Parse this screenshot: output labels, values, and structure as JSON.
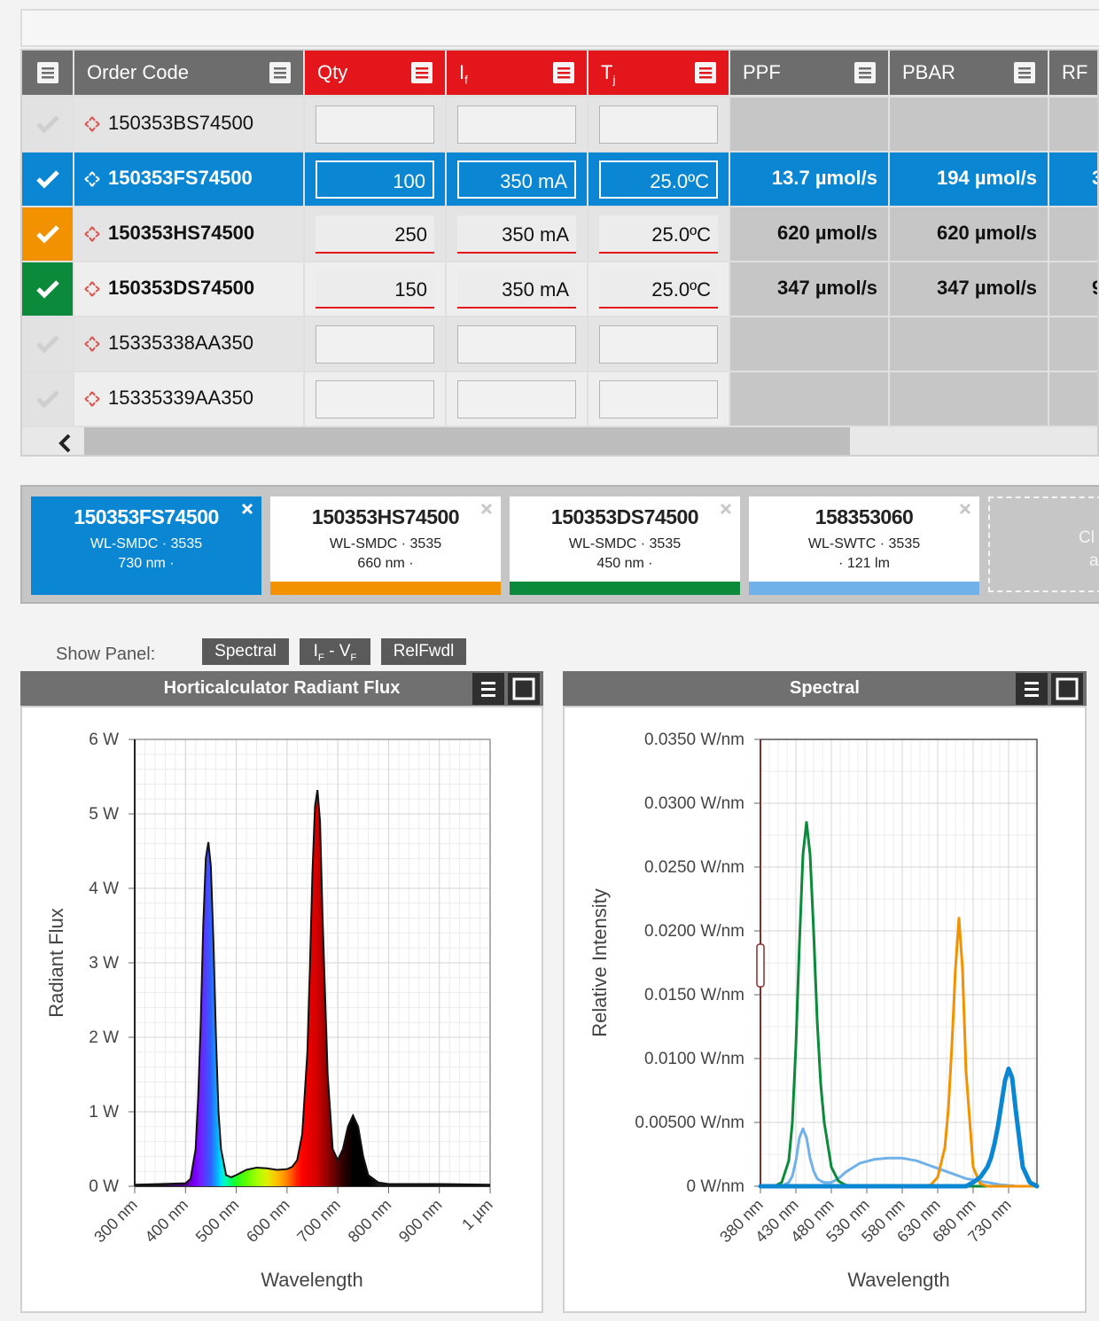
{
  "table": {
    "headers": [
      {
        "parts": [
          {
            "text": "Order Code"
          }
        ],
        "color": "#6d6d6d"
      },
      {
        "parts": [
          {
            "text": "Qty"
          }
        ],
        "color": "#e3161b"
      },
      {
        "parts": [
          {
            "text": "I"
          },
          {
            "text": "f",
            "sub": true
          }
        ],
        "color": "#e3161b"
      },
      {
        "parts": [
          {
            "text": "T"
          },
          {
            "text": "j",
            "sub": true
          }
        ],
        "color": "#e3161b"
      },
      {
        "parts": [
          {
            "text": "PPF"
          }
        ],
        "color": "#6d6d6d"
      },
      {
        "parts": [
          {
            "text": "PBAR"
          }
        ],
        "color": "#6d6d6d"
      },
      {
        "parts": [
          {
            "text": "RF"
          }
        ],
        "color": "#6d6d6d"
      }
    ],
    "rows": [
      {
        "code": "150353BS74500",
        "check_color": "#e2e2e2"
      },
      {
        "code": "150353FS74500",
        "qty": 100,
        "current": "350 mA",
        "temp": "25.0ºC",
        "ppf": "13.7 µmol/s",
        "pbar": "194 µmol/s",
        "rf": "3",
        "check_color": "#0a86d3",
        "row_color": "#0a86d3"
      },
      {
        "code": "150353HS74500",
        "qty": 250,
        "current": "350 mA",
        "temp": "25.0ºC",
        "ppf": "620 µmol/s",
        "pbar": "620 µmol/s",
        "check_color": "#f39200"
      },
      {
        "code": "150353DS74500",
        "qty": 150,
        "current": "350 mA",
        "temp": "25.0ºC",
        "ppf": "347 µmol/s",
        "pbar": "347 µmol/s",
        "rf": "9",
        "check_color": "#0a8a3a"
      },
      {
        "code": "15335338AA350",
        "check_color": "#e2e2e2"
      },
      {
        "code": "15335339AA350",
        "check_color": "#e2e2e2"
      }
    ]
  },
  "selection_cards": [
    {
      "title": "150353FS74500",
      "line1": "WL-SMDC · 3535",
      "line2": "730 nm ·",
      "bar_color": "#0a86d3",
      "background": "#0a86d3"
    },
    {
      "title": "150353HS74500",
      "line1": "WL-SMDC · 3535",
      "line2": "660 nm ·",
      "bar_color": "#f39200"
    },
    {
      "title": "150353DS74500",
      "line1": "WL-SMDC · 3535",
      "line2": "450 nm ·",
      "bar_color": "#0a8a3a"
    },
    {
      "title": "158353060",
      "line1": "WL-SWTC · 3535",
      "line2": "· 121 lm",
      "bar_color": "#6fb1e8"
    }
  ],
  "clear_card": {
    "lines": [
      "Cl",
      "a"
    ]
  },
  "show_panel": {
    "label": "Show Panel:",
    "buttons": [
      {
        "parts": [
          {
            "text": "Spectral"
          }
        ]
      },
      {
        "parts": [
          {
            "text": "I"
          },
          {
            "text": "F",
            "sub": true
          },
          {
            "text": " - V"
          },
          {
            "text": "F",
            "sub": true
          }
        ]
      },
      {
        "parts": [
          {
            "text": "RelFwdl"
          }
        ]
      }
    ]
  },
  "chart_data": [
    {
      "type": "area",
      "title": "Horticalculator Radiant Flux",
      "x_label": "Wavelength",
      "y_label": "Radiant Flux",
      "x": [
        300,
        350,
        400,
        410,
        420,
        425,
        430,
        435,
        440,
        445,
        450,
        455,
        460,
        465,
        470,
        480,
        490,
        500,
        520,
        540,
        560,
        580,
        600,
        610,
        620,
        630,
        640,
        645,
        650,
        655,
        660,
        665,
        670,
        680,
        690,
        700,
        710,
        720,
        730,
        740,
        750,
        760,
        780,
        800,
        900,
        1000
      ],
      "values": [
        0.02,
        0.03,
        0.04,
        0.1,
        0.5,
        1.2,
        2.2,
        3.5,
        4.4,
        4.62,
        4.3,
        3.3,
        2.0,
        1.0,
        0.5,
        0.15,
        0.12,
        0.15,
        0.22,
        0.25,
        0.24,
        0.22,
        0.23,
        0.26,
        0.35,
        0.7,
        1.8,
        2.9,
        4.2,
        5.1,
        5.32,
        4.9,
        3.6,
        1.5,
        0.5,
        0.35,
        0.5,
        0.8,
        0.95,
        0.8,
        0.4,
        0.15,
        0.05,
        0.03,
        0.03,
        0.02
      ],
      "colors": [
        "#1a1a1a",
        "#1a1a1a",
        "#4b0082",
        "#6a00c8",
        "#7a00ff",
        "#7a10ff",
        "#7020ff",
        "#6030ff",
        "#5040ff",
        "#4050ff",
        "#3060ff",
        "#2080ff",
        "#10a0ff",
        "#00c0ff",
        "#00e0f0",
        "#00ffb0",
        "#00ff60",
        "#20ff20",
        "#60ff00",
        "#a0ff00",
        "#e0f000",
        "#ffc000",
        "#ff8000",
        "#ff5000",
        "#ff2000",
        "#ff0000",
        "#f00000",
        "#e80000",
        "#e00000",
        "#d80000",
        "#d00000",
        "#c00000",
        "#b00000",
        "#900000",
        "#700000",
        "#500000",
        "#300000",
        "#180000",
        "#000000",
        "#000000",
        "#000000",
        "#000000",
        "#1a1a1a",
        "#1a1a1a",
        "#1a1a1a",
        "#1a1a1a"
      ],
      "line_color": "#111111",
      "xlim": [
        300,
        1000
      ],
      "xticks": [
        {
          "value": 300,
          "label": "300 nm"
        },
        {
          "value": 400,
          "label": "400 nm"
        },
        {
          "value": 500,
          "label": "500 nm"
        },
        {
          "value": 600,
          "label": "600 nm"
        },
        {
          "value": 700,
          "label": "700 nm"
        },
        {
          "value": 800,
          "label": "800 nm"
        },
        {
          "value": 900,
          "label": "900 nm"
        },
        {
          "value": 1000,
          "label": "1 µm"
        }
      ],
      "ylim": [
        0,
        6
      ],
      "yticks": [
        {
          "value": 0,
          "label": "0 W"
        },
        {
          "value": 1,
          "label": "1 W"
        },
        {
          "value": 2,
          "label": "2 W"
        },
        {
          "value": 3,
          "label": "3 W"
        },
        {
          "value": 4,
          "label": "4 W"
        },
        {
          "value": 5,
          "label": "5 W"
        },
        {
          "value": 6,
          "label": "6 W"
        }
      ],
      "grid": true
    },
    {
      "type": "line",
      "title": "Spectral",
      "x_label": "Wavelength",
      "y_label": "Relative Intensity",
      "x": [
        380,
        390,
        400,
        410,
        420,
        425,
        430,
        435,
        440,
        445,
        450,
        455,
        460,
        465,
        470,
        480,
        490,
        500,
        520,
        540,
        560,
        580,
        600,
        620,
        630,
        640,
        645,
        650,
        655,
        660,
        665,
        670,
        680,
        690,
        700,
        705,
        710,
        715,
        720,
        725,
        730,
        735,
        740,
        750,
        760,
        770
      ],
      "series": [
        {
          "color": "#6fb1e8",
          "line_width": 3,
          "values": [
            0,
            0,
            0,
            0,
            0.0003,
            0.0008,
            0.002,
            0.0038,
            0.0045,
            0.0038,
            0.0022,
            0.0012,
            0.0006,
            0.0004,
            0.0003,
            0.0003,
            0.0006,
            0.0011,
            0.0018,
            0.0021,
            0.0022,
            0.0022,
            0.002,
            0.0016,
            0.0014,
            0.0012,
            0.0011,
            0.001,
            0.0009,
            0.0008,
            0.0007,
            0.0006,
            0.0005,
            0.0004,
            0.0003,
            0.00025,
            0.0002,
            0.00015,
            0.0001,
            0.0001,
            5e-05,
            5e-05,
            0,
            0,
            0,
            0
          ]
        },
        {
          "color": "#0a8a3a",
          "line_width": 3,
          "values": [
            0,
            0,
            0,
            0.0003,
            0.002,
            0.005,
            0.011,
            0.019,
            0.026,
            0.0285,
            0.026,
            0.02,
            0.013,
            0.008,
            0.005,
            0.0015,
            0.0004,
            0.0001,
            0,
            0,
            0,
            0,
            0,
            0,
            0,
            0,
            0,
            0,
            0,
            0,
            0,
            0,
            0,
            0,
            0,
            0,
            0,
            0,
            0,
            0,
            0,
            0,
            0,
            0,
            0,
            0
          ]
        },
        {
          "color": "#f39200",
          "line_width": 3,
          "values": [
            0,
            0,
            0,
            0,
            0,
            0,
            0,
            0,
            0,
            0,
            0,
            0,
            0,
            0,
            0,
            0,
            0,
            0,
            0,
            0,
            0,
            0,
            0,
            0.0001,
            0.0007,
            0.003,
            0.006,
            0.011,
            0.017,
            0.021,
            0.017,
            0.009,
            0.0015,
            0.0002,
            0,
            0,
            0,
            0,
            0,
            0,
            0,
            0,
            0,
            0,
            0,
            0
          ]
        },
        {
          "color": "#0a86d3",
          "line_width": 5,
          "values": [
            0,
            0,
            0,
            0,
            0,
            0,
            0,
            0,
            0,
            0,
            0,
            0,
            0,
            0,
            0,
            0,
            0,
            0,
            0,
            0,
            0,
            0,
            0,
            0,
            0,
            0,
            0,
            0,
            0,
            0,
            0,
            0,
            0.0003,
            0.0007,
            0.0015,
            0.0022,
            0.0033,
            0.0047,
            0.0065,
            0.0083,
            0.0092,
            0.0085,
            0.006,
            0.0015,
            0.0003,
            0
          ]
        }
      ],
      "xlim": [
        380,
        770
      ],
      "xticks": [
        {
          "value": 380,
          "label": "380 nm"
        },
        {
          "value": 430,
          "label": "430 nm"
        },
        {
          "value": 480,
          "label": "480 nm"
        },
        {
          "value": 530,
          "label": "530 nm"
        },
        {
          "value": 580,
          "label": "580 nm"
        },
        {
          "value": 630,
          "label": "630 nm"
        },
        {
          "value": 680,
          "label": "680 nm"
        },
        {
          "value": 730,
          "label": "730 nm"
        }
      ],
      "ylim": [
        0,
        0.035
      ],
      "yticks": [
        {
          "value": 0,
          "label": "0 W/nm"
        },
        {
          "value": 0.005,
          "label": "0.00500 W/nm"
        },
        {
          "value": 0.01,
          "label": "0.0100 W/nm"
        },
        {
          "value": 0.015,
          "label": "0.0150 W/nm"
        },
        {
          "value": 0.02,
          "label": "0.0200 W/nm"
        },
        {
          "value": 0.025,
          "label": "0.0250 W/nm"
        },
        {
          "value": 0.03,
          "label": "0.0300 W/nm"
        },
        {
          "value": 0.035,
          "label": "0.0350 W/nm"
        }
      ],
      "grid": true
    }
  ]
}
